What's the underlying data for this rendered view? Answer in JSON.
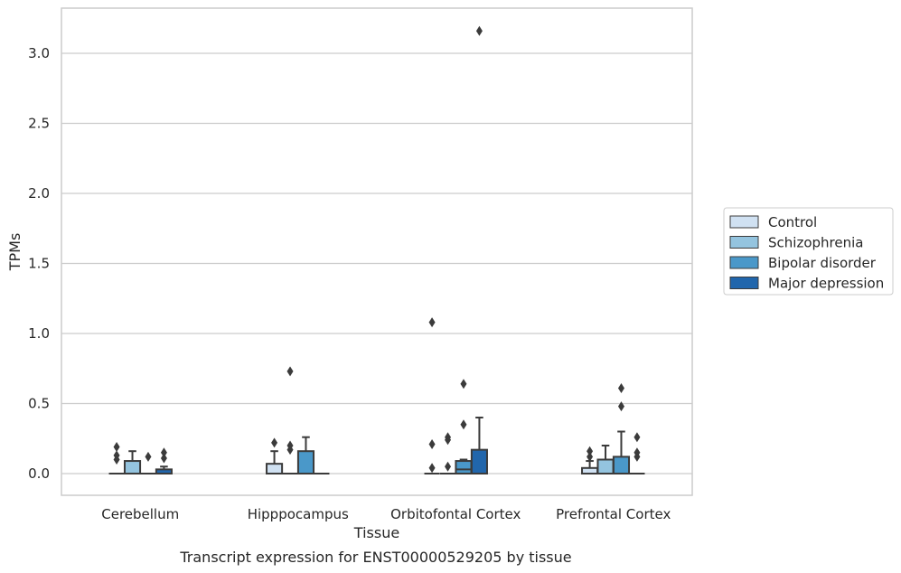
{
  "caption": "Transcript expression for ENST00000529205 by tissue",
  "chart_data": {
    "type": "box",
    "xlabel": "Tissue",
    "ylabel": "TPMs",
    "ylim": [
      -0.15,
      3.3
    ],
    "yticks": [
      "0.0",
      "0.5",
      "1.0",
      "1.5",
      "2.0",
      "2.5",
      "3.0"
    ],
    "grid": "horizontal",
    "legend_position": "right",
    "categories": [
      "Cerebellum",
      "Hipppocampus",
      "Orbitofontal Cortex",
      "Prefrontal Cortex"
    ],
    "series": [
      {
        "name": "Control",
        "color": "#d0e1f2",
        "boxes": [
          {
            "q1": 0,
            "median": 0,
            "q3": 0,
            "whisker_low": 0,
            "whisker_high": 0,
            "outliers": [
              0.19,
              0.13,
              0.1
            ]
          },
          {
            "q1": 0,
            "median": 0,
            "q3": 0.07,
            "whisker_low": 0,
            "whisker_high": 0.16,
            "outliers": [
              0.22
            ]
          },
          {
            "q1": 0,
            "median": 0,
            "q3": 0,
            "whisker_low": 0,
            "whisker_high": 0,
            "outliers": [
              1.08,
              0.21,
              0.04
            ]
          },
          {
            "q1": 0,
            "median": 0,
            "q3": 0.04,
            "whisker_low": 0,
            "whisker_high": 0.09,
            "outliers": [
              0.16,
              0.12
            ]
          }
        ]
      },
      {
        "name": "Schizophrenia",
        "color": "#94c4df",
        "boxes": [
          {
            "q1": 0,
            "median": 0,
            "q3": 0.09,
            "whisker_low": 0,
            "whisker_high": 0.16,
            "outliers": []
          },
          {
            "q1": 0,
            "median": 0,
            "q3": 0,
            "whisker_low": 0,
            "whisker_high": 0,
            "outliers": [
              0.73,
              0.2,
              0.17
            ]
          },
          {
            "q1": 0,
            "median": 0,
            "q3": 0,
            "whisker_low": 0,
            "whisker_high": 0,
            "outliers": [
              0.26,
              0.24,
              0.05
            ]
          },
          {
            "q1": 0,
            "median": 0,
            "q3": 0.1,
            "whisker_low": 0,
            "whisker_high": 0.2,
            "outliers": []
          }
        ]
      },
      {
        "name": "Bipolar disorder",
        "color": "#4a98c9",
        "boxes": [
          {
            "q1": 0,
            "median": 0,
            "q3": 0,
            "whisker_low": 0,
            "whisker_high": 0,
            "outliers": [
              0.12
            ]
          },
          {
            "q1": 0,
            "median": 0,
            "q3": 0.16,
            "whisker_low": 0,
            "whisker_high": 0.26,
            "outliers": []
          },
          {
            "q1": 0,
            "median": 0.03,
            "q3": 0.09,
            "whisker_low": 0,
            "whisker_high": 0.1,
            "outliers": [
              0.64,
              0.35
            ]
          },
          {
            "q1": 0,
            "median": 0,
            "q3": 0.12,
            "whisker_low": 0,
            "whisker_high": 0.3,
            "outliers": [
              0.61,
              0.48
            ]
          }
        ]
      },
      {
        "name": "Major depression",
        "color": "#2166ac",
        "boxes": [
          {
            "q1": 0,
            "median": 0,
            "q3": 0.03,
            "whisker_low": 0,
            "whisker_high": 0.05,
            "outliers": [
              0.15,
              0.11
            ]
          },
          {
            "q1": 0,
            "median": 0,
            "q3": 0,
            "whisker_low": 0,
            "whisker_high": 0,
            "outliers": []
          },
          {
            "q1": 0,
            "median": 0,
            "q3": 0.17,
            "whisker_low": 0,
            "whisker_high": 0.4,
            "outliers": [
              3.16
            ]
          },
          {
            "q1": 0,
            "median": 0,
            "q3": 0,
            "whisker_low": 0,
            "whisker_high": 0,
            "outliers": [
              0.26,
              0.15,
              0.12
            ]
          }
        ]
      }
    ]
  }
}
